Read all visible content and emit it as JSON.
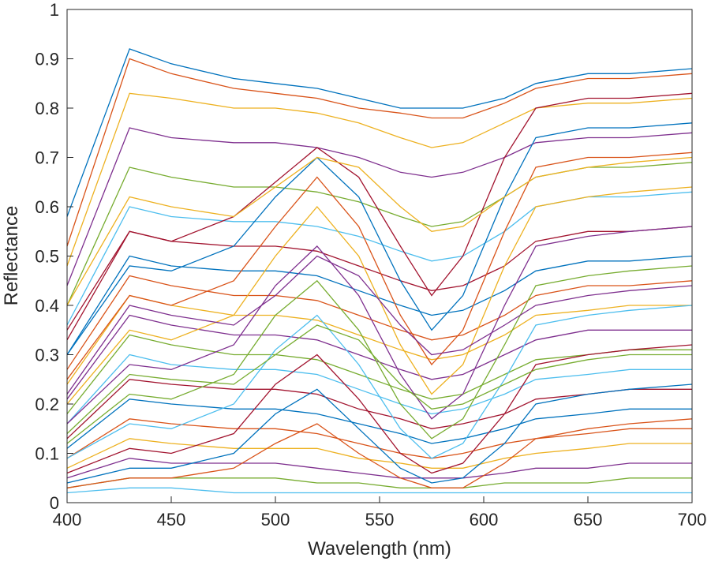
{
  "chart_data": {
    "type": "line",
    "title": "",
    "xlabel": "Wavelength (nm)",
    "ylabel": "Reflectance",
    "xlim": [
      400,
      700
    ],
    "ylim": [
      0,
      1
    ],
    "x_ticks": [
      "400",
      "450",
      "500",
      "550",
      "600",
      "650",
      "700"
    ],
    "y_ticks": [
      "0",
      "0.1",
      "0.2",
      "0.3",
      "0.4",
      "0.5",
      "0.6",
      "0.7",
      "0.8",
      "0.9",
      "1"
    ],
    "grid": false,
    "legend": "none",
    "series_count_note": "hundreds of overlapping reflectance spectra; representative series listed",
    "x": [
      400,
      430,
      450,
      480,
      500,
      520,
      540,
      560,
      575,
      590,
      610,
      625,
      650,
      670,
      700
    ],
    "series": [
      {
        "values": [
          0.58,
          0.92,
          0.89,
          0.86,
          0.85,
          0.84,
          0.82,
          0.8,
          0.8,
          0.8,
          0.82,
          0.85,
          0.87,
          0.87,
          0.88
        ]
      },
      {
        "values": [
          0.52,
          0.9,
          0.87,
          0.84,
          0.83,
          0.82,
          0.8,
          0.79,
          0.78,
          0.78,
          0.81,
          0.84,
          0.86,
          0.86,
          0.87
        ]
      },
      {
        "values": [
          0.48,
          0.83,
          0.82,
          0.8,
          0.8,
          0.79,
          0.77,
          0.74,
          0.72,
          0.73,
          0.77,
          0.8,
          0.81,
          0.81,
          0.82
        ]
      },
      {
        "values": [
          0.44,
          0.76,
          0.74,
          0.73,
          0.73,
          0.72,
          0.7,
          0.67,
          0.66,
          0.67,
          0.7,
          0.73,
          0.74,
          0.74,
          0.75
        ]
      },
      {
        "values": [
          0.4,
          0.68,
          0.66,
          0.64,
          0.64,
          0.63,
          0.61,
          0.58,
          0.56,
          0.57,
          0.62,
          0.66,
          0.68,
          0.68,
          0.69
        ]
      },
      {
        "values": [
          0.36,
          0.6,
          0.58,
          0.57,
          0.57,
          0.56,
          0.54,
          0.51,
          0.49,
          0.5,
          0.55,
          0.6,
          0.62,
          0.62,
          0.63
        ]
      },
      {
        "values": [
          0.33,
          0.55,
          0.53,
          0.52,
          0.52,
          0.51,
          0.48,
          0.45,
          0.43,
          0.44,
          0.48,
          0.53,
          0.55,
          0.55,
          0.56
        ]
      },
      {
        "values": [
          0.3,
          0.5,
          0.48,
          0.47,
          0.47,
          0.46,
          0.43,
          0.4,
          0.38,
          0.39,
          0.43,
          0.47,
          0.49,
          0.49,
          0.5
        ]
      },
      {
        "values": [
          0.27,
          0.46,
          0.44,
          0.42,
          0.42,
          0.41,
          0.38,
          0.35,
          0.33,
          0.34,
          0.38,
          0.42,
          0.44,
          0.44,
          0.45
        ]
      },
      {
        "values": [
          0.24,
          0.42,
          0.4,
          0.38,
          0.38,
          0.37,
          0.34,
          0.31,
          0.29,
          0.3,
          0.34,
          0.38,
          0.39,
          0.4,
          0.4
        ]
      },
      {
        "values": [
          0.21,
          0.38,
          0.36,
          0.34,
          0.34,
          0.33,
          0.3,
          0.27,
          0.25,
          0.26,
          0.3,
          0.33,
          0.35,
          0.35,
          0.35
        ]
      },
      {
        "values": [
          0.18,
          0.34,
          0.32,
          0.3,
          0.3,
          0.29,
          0.26,
          0.23,
          0.21,
          0.22,
          0.26,
          0.29,
          0.3,
          0.31,
          0.31
        ]
      },
      {
        "values": [
          0.16,
          0.3,
          0.28,
          0.27,
          0.27,
          0.26,
          0.23,
          0.2,
          0.18,
          0.19,
          0.22,
          0.25,
          0.26,
          0.27,
          0.27
        ]
      },
      {
        "values": [
          0.13,
          0.25,
          0.24,
          0.23,
          0.23,
          0.22,
          0.19,
          0.17,
          0.15,
          0.16,
          0.18,
          0.21,
          0.22,
          0.23,
          0.23
        ]
      },
      {
        "values": [
          0.11,
          0.21,
          0.2,
          0.19,
          0.19,
          0.18,
          0.16,
          0.14,
          0.12,
          0.13,
          0.15,
          0.17,
          0.18,
          0.19,
          0.19
        ]
      },
      {
        "values": [
          0.09,
          0.17,
          0.16,
          0.15,
          0.15,
          0.14,
          0.12,
          0.1,
          0.09,
          0.1,
          0.12,
          0.13,
          0.14,
          0.15,
          0.15
        ]
      },
      {
        "values": [
          0.07,
          0.13,
          0.12,
          0.11,
          0.11,
          0.11,
          0.09,
          0.08,
          0.07,
          0.07,
          0.09,
          0.1,
          0.11,
          0.12,
          0.12
        ]
      },
      {
        "values": [
          0.05,
          0.09,
          0.08,
          0.08,
          0.08,
          0.07,
          0.06,
          0.05,
          0.05,
          0.05,
          0.06,
          0.07,
          0.07,
          0.08,
          0.08
        ]
      },
      {
        "values": [
          0.03,
          0.05,
          0.05,
          0.05,
          0.05,
          0.04,
          0.04,
          0.03,
          0.03,
          0.03,
          0.04,
          0.04,
          0.04,
          0.05,
          0.05
        ]
      },
      {
        "values": [
          0.02,
          0.03,
          0.03,
          0.02,
          0.02,
          0.02,
          0.02,
          0.02,
          0.02,
          0.02,
          0.02,
          0.02,
          0.02,
          0.02,
          0.02
        ]
      },
      {
        "values": [
          0.35,
          0.55,
          0.53,
          0.58,
          0.65,
          0.72,
          0.66,
          0.52,
          0.42,
          0.5,
          0.7,
          0.8,
          0.82,
          0.82,
          0.83
        ]
      },
      {
        "values": [
          0.3,
          0.48,
          0.47,
          0.52,
          0.62,
          0.7,
          0.62,
          0.45,
          0.35,
          0.42,
          0.62,
          0.74,
          0.76,
          0.76,
          0.77
        ]
      },
      {
        "values": [
          0.25,
          0.42,
          0.4,
          0.45,
          0.56,
          0.66,
          0.56,
          0.38,
          0.28,
          0.35,
          0.55,
          0.68,
          0.7,
          0.7,
          0.71
        ]
      },
      {
        "values": [
          0.2,
          0.35,
          0.33,
          0.38,
          0.5,
          0.6,
          0.5,
          0.32,
          0.22,
          0.28,
          0.48,
          0.6,
          0.62,
          0.63,
          0.64
        ]
      },
      {
        "values": [
          0.16,
          0.28,
          0.27,
          0.32,
          0.44,
          0.52,
          0.42,
          0.26,
          0.17,
          0.22,
          0.4,
          0.52,
          0.54,
          0.55,
          0.56
        ]
      },
      {
        "values": [
          0.12,
          0.22,
          0.21,
          0.26,
          0.38,
          0.45,
          0.35,
          0.2,
          0.13,
          0.17,
          0.32,
          0.44,
          0.46,
          0.47,
          0.48
        ]
      },
      {
        "values": [
          0.09,
          0.16,
          0.15,
          0.2,
          0.31,
          0.38,
          0.28,
          0.15,
          0.09,
          0.12,
          0.25,
          0.36,
          0.38,
          0.39,
          0.4
        ]
      },
      {
        "values": [
          0.06,
          0.11,
          0.1,
          0.14,
          0.24,
          0.3,
          0.21,
          0.1,
          0.06,
          0.08,
          0.18,
          0.28,
          0.3,
          0.31,
          0.32
        ]
      },
      {
        "values": [
          0.04,
          0.07,
          0.07,
          0.1,
          0.18,
          0.23,
          0.15,
          0.07,
          0.04,
          0.05,
          0.12,
          0.2,
          0.22,
          0.23,
          0.24
        ]
      },
      {
        "values": [
          0.03,
          0.05,
          0.05,
          0.07,
          0.12,
          0.16,
          0.1,
          0.05,
          0.03,
          0.03,
          0.08,
          0.13,
          0.15,
          0.16,
          0.17
        ]
      },
      {
        "values": [
          0.4,
          0.62,
          0.6,
          0.58,
          0.64,
          0.7,
          0.68,
          0.6,
          0.55,
          0.56,
          0.62,
          0.66,
          0.68,
          0.69,
          0.7
        ]
      },
      {
        "values": [
          0.22,
          0.4,
          0.38,
          0.36,
          0.42,
          0.5,
          0.46,
          0.36,
          0.3,
          0.31,
          0.36,
          0.4,
          0.42,
          0.43,
          0.44
        ]
      },
      {
        "values": [
          0.14,
          0.26,
          0.25,
          0.24,
          0.3,
          0.36,
          0.33,
          0.24,
          0.19,
          0.2,
          0.24,
          0.27,
          0.29,
          0.3,
          0.3
        ]
      }
    ]
  },
  "colors": [
    "#0072BD",
    "#D95319",
    "#EDB120",
    "#7E2F8E",
    "#77AC30",
    "#4DBEEE",
    "#A2142F"
  ]
}
